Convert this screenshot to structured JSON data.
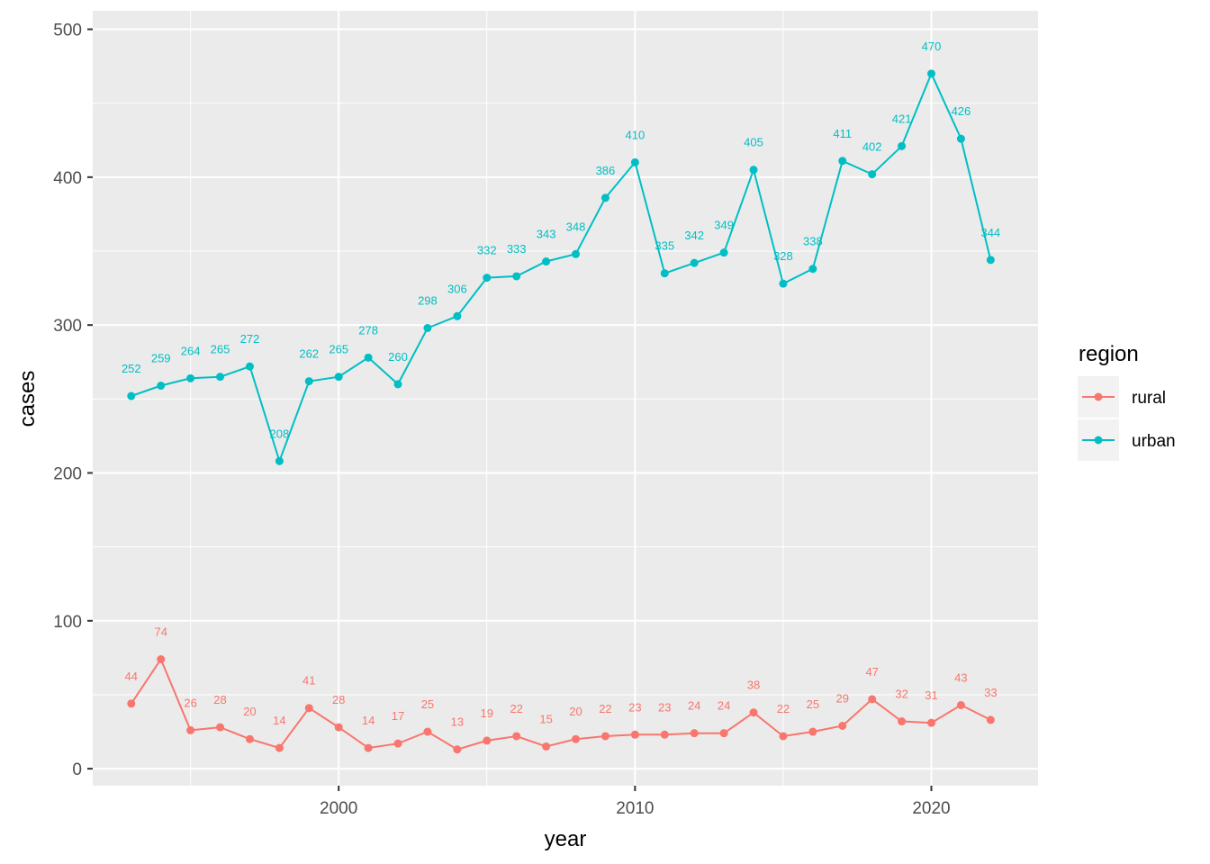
{
  "chart_data": {
    "type": "line",
    "xlabel": "year",
    "ylabel": "cases",
    "xlim": [
      1991.7,
      2023.6
    ],
    "ylim": [
      -11.5,
      512.5
    ],
    "x_ticks": [
      2000,
      2010,
      2020
    ],
    "y_ticks": [
      0,
      100,
      200,
      300,
      400,
      500
    ],
    "grid": true,
    "legend": {
      "title": "region",
      "position": "right"
    },
    "x": [
      1993,
      1994,
      1995,
      1996,
      1997,
      1998,
      1999,
      2000,
      2001,
      2002,
      2003,
      2004,
      2005,
      2006,
      2007,
      2008,
      2009,
      2010,
      2011,
      2012,
      2013,
      2014,
      2015,
      2016,
      2017,
      2018,
      2019,
      2020,
      2021,
      2022
    ],
    "series": [
      {
        "name": "rural",
        "color": "#F8766D",
        "values": [
          44,
          74,
          26,
          28,
          20,
          14,
          41,
          28,
          14,
          17,
          25,
          13,
          19,
          22,
          15,
          20,
          22,
          23,
          23,
          24,
          24,
          38,
          22,
          25,
          29,
          47,
          32,
          31,
          43,
          33
        ]
      },
      {
        "name": "urban",
        "color": "#00BFC4",
        "values": [
          252,
          259,
          264,
          265,
          272,
          208,
          262,
          265,
          278,
          260,
          298,
          306,
          332,
          333,
          343,
          348,
          386,
          410,
          335,
          342,
          349,
          405,
          328,
          338,
          411,
          402,
          421,
          470,
          426,
          344
        ]
      }
    ]
  }
}
